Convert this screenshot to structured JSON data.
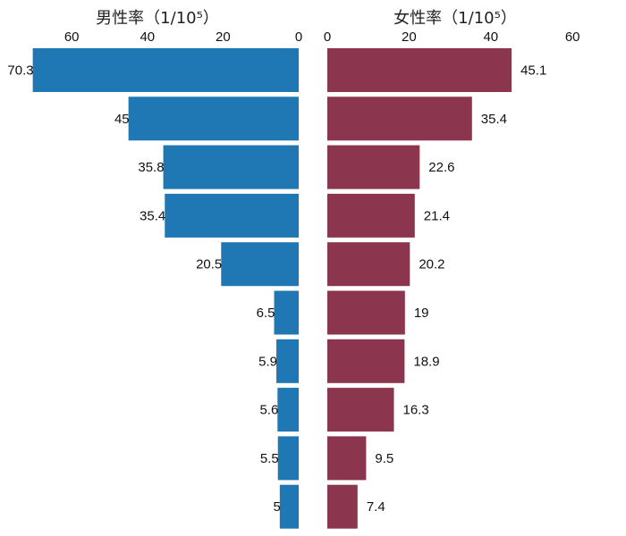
{
  "chart_data": [
    {
      "type": "bar",
      "orientation": "horizontal",
      "direction": "leftward",
      "title": "男性率（1/10⁵）",
      "xlim": [
        0,
        70.3
      ],
      "xticks": [
        0,
        20,
        40,
        60
      ],
      "tick_labels": [
        "0",
        "20",
        "40",
        "60"
      ],
      "values": [
        70.3,
        45,
        35.8,
        35.4,
        20.5,
        6.5,
        5.9,
        5.6,
        5.5,
        5
      ],
      "value_labels": [
        "70.3",
        "45",
        "35.8",
        "35.4",
        "20.5",
        "6.5",
        "5.9",
        "5.6",
        "5.5",
        "5"
      ],
      "color": "#1f77b4",
      "grid": false
    },
    {
      "type": "bar",
      "orientation": "horizontal",
      "direction": "rightward",
      "title": "女性率（1/10⁵）",
      "xlim": [
        0,
        60
      ],
      "xticks": [
        0,
        20,
        40,
        60
      ],
      "tick_labels": [
        "0",
        "20",
        "40",
        "60"
      ],
      "values": [
        45.1,
        35.4,
        22.6,
        21.4,
        20.2,
        19,
        18.9,
        16.3,
        9.5,
        7.4
      ],
      "value_labels": [
        "45.1",
        "35.4",
        "22.6",
        "21.4",
        "20.2",
        "19",
        "18.9",
        "16.3",
        "9.5",
        "7.4"
      ],
      "color": "#8b354f",
      "grid": false
    }
  ]
}
